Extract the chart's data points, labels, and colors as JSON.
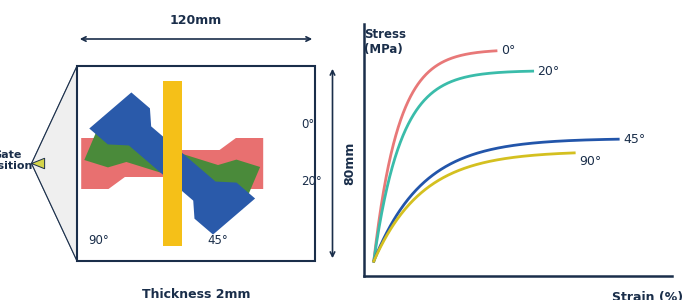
{
  "dark_navy": "#1a2e4a",
  "bg_color": "#ffffff",
  "gate_triangle_color": "#d4d44a",
  "specimen_colors": {
    "red": "#e87070",
    "blue": "#2a5aaa",
    "green": "#4a8a3a",
    "yellow": "#f5c018"
  },
  "curve_colors": {
    "0deg": "#e87878",
    "20deg": "#3abcaa",
    "45deg": "#2255aa",
    "90deg": "#d4c020"
  },
  "labels": {
    "width": "120mm",
    "height": "80mm",
    "thickness": "Thickness 2mm",
    "gate": "Gate\nposition",
    "stress_ylabel": "Stress\n(MPa)",
    "strain_xlabel": "Strain (%)"
  }
}
